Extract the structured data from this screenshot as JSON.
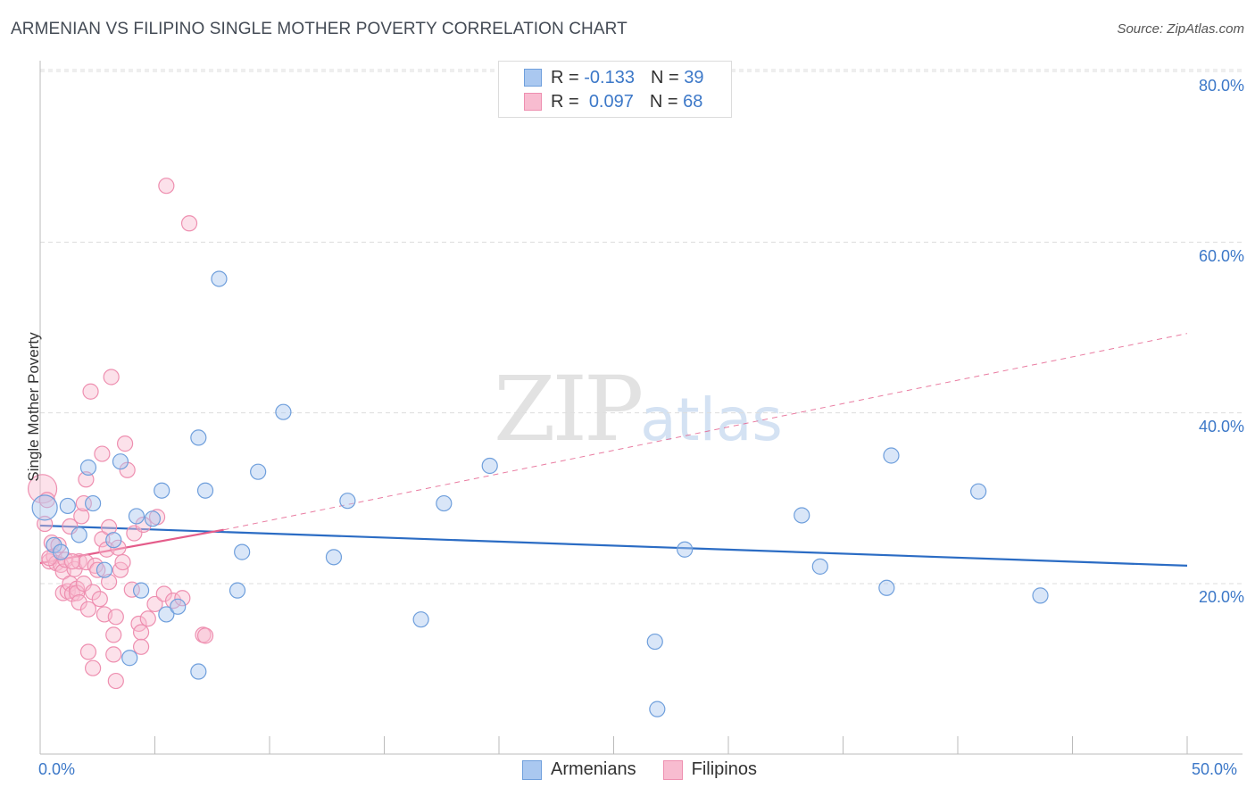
{
  "title": "ARMENIAN VS FILIPINO SINGLE MOTHER POVERTY CORRELATION CHART",
  "source": "Source: ZipAtlas.com",
  "watermark": {
    "zip": "ZIP",
    "atlas": "atlas"
  },
  "legend": {
    "r_label": "R =",
    "n_label": "N =",
    "armenians": {
      "r": "-0.133",
      "n": "39"
    },
    "filipinos": {
      "r": "0.097",
      "n": "68"
    }
  },
  "series_labels": {
    "armenians": "Armenians",
    "filipinos": "Filipinos"
  },
  "colors": {
    "armenians_fill": "#aac8f0",
    "armenians_stroke": "#6f9fdc",
    "armenians_line": "#2b6cc4",
    "filipinos_fill": "#f8bcd0",
    "filipinos_stroke": "#ee8fb0",
    "filipinos_line": "#e45c8a",
    "tick_label": "#3c78c8"
  },
  "chart_data": {
    "type": "scatter",
    "title": "ARMENIAN VS FILIPINO SINGLE MOTHER POVERTY CORRELATION CHART",
    "xlabel": "",
    "ylabel": "Single Mother Poverty",
    "xlim": [
      0,
      50
    ],
    "ylim": [
      0,
      82
    ],
    "x_tick_labels": [
      "0.0%",
      "50.0%"
    ],
    "y_ticks": [
      20,
      40,
      60,
      80
    ],
    "y_tick_labels": [
      "20.0%",
      "40.0%",
      "60.0%",
      "80.0%"
    ],
    "grid": true,
    "series": [
      {
        "name": "Armenians",
        "r": -0.133,
        "n": 39,
        "trend": {
          "x": [
            0,
            50
          ],
          "y": [
            26.8,
            22.1
          ]
        },
        "points": [
          {
            "x": 0.2,
            "y": 28.9
          },
          {
            "x": 0.6,
            "y": 24.5
          },
          {
            "x": 0.9,
            "y": 23.7
          },
          {
            "x": 1.2,
            "y": 29.1
          },
          {
            "x": 1.7,
            "y": 25.7
          },
          {
            "x": 2.1,
            "y": 33.6
          },
          {
            "x": 2.3,
            "y": 29.4
          },
          {
            "x": 2.8,
            "y": 21.6
          },
          {
            "x": 3.2,
            "y": 25.1
          },
          {
            "x": 3.5,
            "y": 34.3
          },
          {
            "x": 3.9,
            "y": 11.3
          },
          {
            "x": 4.2,
            "y": 27.9
          },
          {
            "x": 4.4,
            "y": 19.2
          },
          {
            "x": 4.9,
            "y": 27.6
          },
          {
            "x": 5.3,
            "y": 30.9
          },
          {
            "x": 5.5,
            "y": 16.4
          },
          {
            "x": 6.0,
            "y": 17.3
          },
          {
            "x": 6.9,
            "y": 9.7
          },
          {
            "x": 6.9,
            "y": 37.1
          },
          {
            "x": 7.2,
            "y": 30.9
          },
          {
            "x": 7.8,
            "y": 55.7
          },
          {
            "x": 8.6,
            "y": 19.2
          },
          {
            "x": 8.8,
            "y": 23.7
          },
          {
            "x": 9.5,
            "y": 33.1
          },
          {
            "x": 10.6,
            "y": 40.1
          },
          {
            "x": 12.8,
            "y": 23.1
          },
          {
            "x": 13.4,
            "y": 29.7
          },
          {
            "x": 16.6,
            "y": 15.8
          },
          {
            "x": 17.6,
            "y": 29.4
          },
          {
            "x": 19.6,
            "y": 33.8
          },
          {
            "x": 26.8,
            "y": 13.2
          },
          {
            "x": 26.9,
            "y": 5.3
          },
          {
            "x": 28.1,
            "y": 24.0
          },
          {
            "x": 33.2,
            "y": 28.0
          },
          {
            "x": 34.0,
            "y": 22.0
          },
          {
            "x": 36.9,
            "y": 19.5
          },
          {
            "x": 37.1,
            "y": 35.0
          },
          {
            "x": 40.9,
            "y": 30.8
          },
          {
            "x": 43.6,
            "y": 18.6
          }
        ]
      },
      {
        "name": "Filipinos",
        "r": 0.097,
        "n": 68,
        "trend": {
          "x": [
            0,
            8
          ],
          "y": [
            22.4,
            26.3
          ]
        },
        "trend_extension": {
          "x": [
            8,
            50
          ],
          "y": [
            26.3,
            49.3
          ]
        },
        "points": [
          {
            "x": 0.1,
            "y": 31.1
          },
          {
            "x": 0.2,
            "y": 27.0
          },
          {
            "x": 0.3,
            "y": 29.8
          },
          {
            "x": 0.4,
            "y": 22.6
          },
          {
            "x": 0.5,
            "y": 24.8
          },
          {
            "x": 0.6,
            "y": 23.2
          },
          {
            "x": 0.7,
            "y": 22.4
          },
          {
            "x": 0.8,
            "y": 24.5
          },
          {
            "x": 0.9,
            "y": 22.2
          },
          {
            "x": 1.0,
            "y": 21.4
          },
          {
            "x": 1.0,
            "y": 18.9
          },
          {
            "x": 1.1,
            "y": 22.8
          },
          {
            "x": 1.2,
            "y": 19.1
          },
          {
            "x": 1.3,
            "y": 20.0
          },
          {
            "x": 1.3,
            "y": 26.7
          },
          {
            "x": 1.4,
            "y": 18.8
          },
          {
            "x": 1.5,
            "y": 21.7
          },
          {
            "x": 1.6,
            "y": 19.4
          },
          {
            "x": 1.6,
            "y": 18.9
          },
          {
            "x": 1.7,
            "y": 22.6
          },
          {
            "x": 1.7,
            "y": 17.8
          },
          {
            "x": 1.8,
            "y": 27.9
          },
          {
            "x": 1.9,
            "y": 20.0
          },
          {
            "x": 1.9,
            "y": 29.4
          },
          {
            "x": 2.0,
            "y": 32.2
          },
          {
            "x": 2.0,
            "y": 22.5
          },
          {
            "x": 2.1,
            "y": 12.0
          },
          {
            "x": 2.1,
            "y": 17.0
          },
          {
            "x": 2.2,
            "y": 42.5
          },
          {
            "x": 2.3,
            "y": 10.1
          },
          {
            "x": 2.3,
            "y": 19.0
          },
          {
            "x": 2.4,
            "y": 22.1
          },
          {
            "x": 2.5,
            "y": 21.6
          },
          {
            "x": 2.6,
            "y": 18.2
          },
          {
            "x": 2.7,
            "y": 25.2
          },
          {
            "x": 2.7,
            "y": 35.2
          },
          {
            "x": 2.8,
            "y": 16.4
          },
          {
            "x": 2.9,
            "y": 24.0
          },
          {
            "x": 3.0,
            "y": 26.6
          },
          {
            "x": 3.0,
            "y": 20.2
          },
          {
            "x": 3.1,
            "y": 44.2
          },
          {
            "x": 3.2,
            "y": 11.7
          },
          {
            "x": 3.2,
            "y": 14.0
          },
          {
            "x": 3.3,
            "y": 8.6
          },
          {
            "x": 3.3,
            "y": 16.1
          },
          {
            "x": 3.4,
            "y": 24.2
          },
          {
            "x": 3.5,
            "y": 21.6
          },
          {
            "x": 3.6,
            "y": 22.5
          },
          {
            "x": 3.7,
            "y": 36.4
          },
          {
            "x": 3.8,
            "y": 33.3
          },
          {
            "x": 4.0,
            "y": 19.3
          },
          {
            "x": 4.1,
            "y": 25.9
          },
          {
            "x": 4.3,
            "y": 15.3
          },
          {
            "x": 4.4,
            "y": 14.3
          },
          {
            "x": 4.4,
            "y": 12.6
          },
          {
            "x": 4.5,
            "y": 26.9
          },
          {
            "x": 4.7,
            "y": 15.9
          },
          {
            "x": 5.0,
            "y": 17.6
          },
          {
            "x": 5.1,
            "y": 27.8
          },
          {
            "x": 5.4,
            "y": 18.8
          },
          {
            "x": 5.5,
            "y": 66.6
          },
          {
            "x": 5.8,
            "y": 18.0
          },
          {
            "x": 6.2,
            "y": 18.3
          },
          {
            "x": 6.5,
            "y": 62.2
          },
          {
            "x": 7.1,
            "y": 14.0
          },
          {
            "x": 7.2,
            "y": 13.9
          },
          {
            "x": 1.4,
            "y": 22.6
          },
          {
            "x": 0.4,
            "y": 23.0
          }
        ]
      }
    ]
  }
}
